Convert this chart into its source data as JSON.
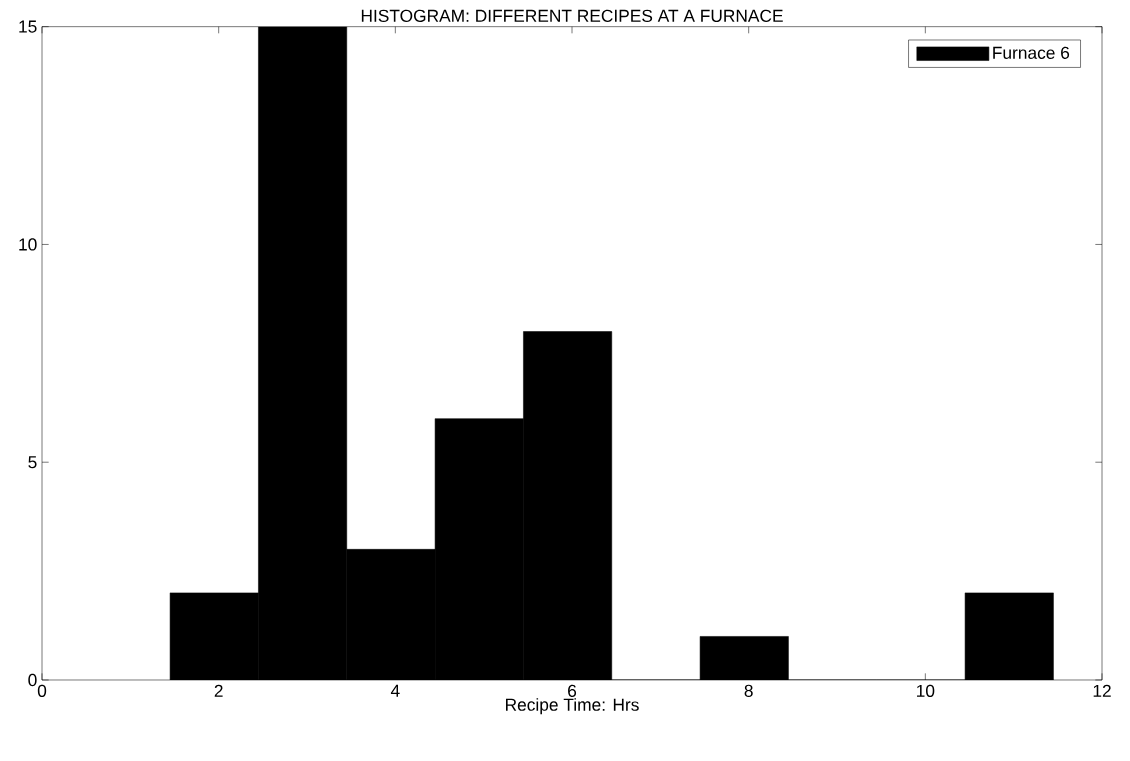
{
  "chart_data": {
    "type": "histogram",
    "title": "HISTOGRAM: DIFFERENT RECIPES AT A FURNACE",
    "xlabel": "Recipe Time: Hrs",
    "bins": [
      1.45,
      2.45,
      3.45,
      4.45,
      5.45,
      6.45,
      7.45,
      8.45,
      9.45,
      10.45,
      11.45
    ],
    "series": [
      {
        "name": "Furnace 6",
        "color": "#000000",
        "values": [
          2,
          15,
          3,
          6,
          8,
          0,
          1,
          0,
          0,
          2
        ]
      }
    ],
    "xlim": [
      0,
      12
    ],
    "xticks": [
      0,
      2,
      4,
      6,
      8,
      10,
      12
    ],
    "ylim": [
      0,
      15
    ],
    "yticks": [
      0,
      5,
      10,
      15
    ],
    "grid": false,
    "legend": "top right"
  }
}
